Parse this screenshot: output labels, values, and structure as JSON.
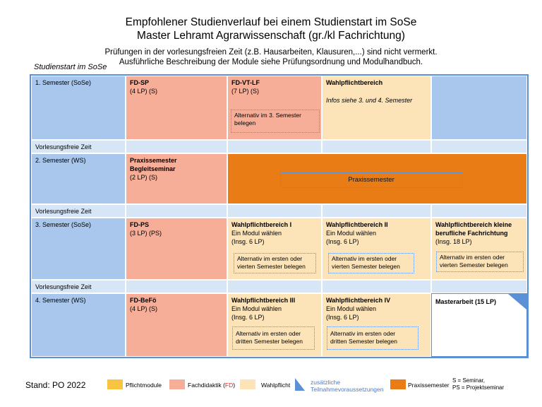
{
  "header": {
    "title_line1": "Empfohlener Studienverlauf bei einem Studienstart im SoSe",
    "title_line2": "Master Lehramt Agrarwissenschaft (gr./kl Fachrichtung)",
    "note_line1": "Prüfungen in der vorlesungsfreien Zeit (z.B. Hausarbeiten, Klausuren,...) sind nicht vermerkt.",
    "note_line2": "Ausführliche Beschreibung der Module siehe Prüfungsordnung und Modulhandbuch.",
    "start_label": "Studienstart im SoSe"
  },
  "rows": {
    "sem1": "1. Semester (SoSe)",
    "break1": "Vorlesungsfreie Zeit",
    "sem2": "2. Semester (WS)",
    "break2": "Vorlesungsfreie Zeit",
    "sem3": "3. Semester (SoSe)",
    "break3": "Vorlesungsfreie Zeit",
    "sem4": "4. Semester (WS)"
  },
  "modules": {
    "fd_sp": {
      "name": "FD-SP",
      "credits": "(4 LP) (S)"
    },
    "fd_vt_lf": {
      "name": "FD-VT-LF",
      "credits": "(7 LP) (S)",
      "note_line1": "Alternativ im 3. Semester",
      "note_line2": "belegen"
    },
    "wp_sem1": {
      "name": "Wahlpflichtbereich",
      "info": "Infos siehe 3. und 4. Semester"
    },
    "praxis_begleit": {
      "line1": "Praxissemester",
      "line2": "Begleitseminar",
      "credits": "(2 LP) (S)"
    },
    "praxissemester": {
      "label": "Praxissemester"
    },
    "fd_ps": {
      "name": "FD-PS",
      "credits": "(3 LP) (PS)"
    },
    "wp1": {
      "name": "Wahlpflichtbereich I",
      "line2": "Ein Modul wählen",
      "line3": "(Insg. 6 LP)",
      "note_line1": "Alternativ im ersten oder",
      "note_line2": "vierten Semester belegen"
    },
    "wp2": {
      "name": "Wahlpflichtbereich II",
      "line2": "Ein Modul wählen",
      "line3": "(Insg. 6 LP)",
      "note_line1": "Alternativ im ersten oder",
      "note_line2": "vierten Semester belegen"
    },
    "wp_kl": {
      "name_line1": "Wahlpflichtbereich kleine",
      "name_line2": "berufliche Fachrichtung",
      "line3": "(Insg. 18 LP)",
      "note_line1": "Alternativ im ersten oder",
      "note_line2": "vierten Semester belegen"
    },
    "fd_befo": {
      "name": "FD-BeFö",
      "credits": "(4 LP) (S)"
    },
    "wp3": {
      "name": "Wahlpflichtbereich III",
      "line2": "Ein Modul wählen",
      "line3": "(Insg. 6 LP)",
      "note_line1": "Alternativ im ersten oder",
      "note_line2": "dritten Semester belegen"
    },
    "wp4": {
      "name": "Wahlpflichtbereich IV",
      "line2": "Ein Modul wählen",
      "line3": "(Insg. 6 LP)",
      "note_line1": "Alternativ im ersten oder",
      "note_line2": "dritten Semester belegen"
    },
    "masterarbeit": {
      "name": "Masterarbeit (15 LP)"
    }
  },
  "legend": {
    "stand": "Stand: PO 2022",
    "pflicht": "Pflichtmodule",
    "fachdidaktik_pre": "Fachdidaktik (",
    "fachdidaktik_fd": "FD",
    "fachdidaktik_post": ")",
    "wahlpflicht": "Wahlpflicht",
    "zusatz_line1": "zusätzliche",
    "zusatz_line2": "Teilnahmevoraussetzungen",
    "praxissemester": "Praxissemester",
    "abbr_line1": "S = Seminar,",
    "abbr_line2": "PS = Projektseminar"
  },
  "colors": {
    "semester_blue": "#a9c6ec",
    "break_blue": "#d6e6f7",
    "fachdidaktik": "#f6ae98",
    "wahlpflicht": "#fde3b8",
    "pflicht": "#f9c440",
    "praxissemester": "#e97c15",
    "border": "#5b8fd6",
    "fd_red": "#e02020"
  }
}
